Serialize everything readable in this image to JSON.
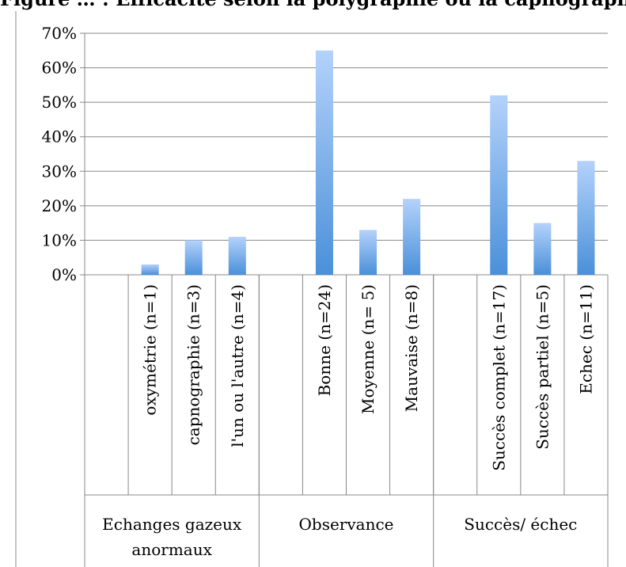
{
  "header": {
    "text": "Figure … : Efficacité selon la polygraphie ou la capnographie"
  },
  "chart_data": {
    "type": "bar",
    "ylim": [
      0,
      0.7
    ],
    "yticks": [
      "0%",
      "10%",
      "20%",
      "30%",
      "40%",
      "50%",
      "60%",
      "70%"
    ],
    "grid": true,
    "colors": {
      "bar_top": "#b4d2fb",
      "bar_bottom": "#4a90d9",
      "grid": "#888888",
      "axis": "#888888"
    },
    "groups": [
      {
        "label_lines": [
          "Echanges gazeux",
          "anormaux"
        ],
        "categories": [
          {
            "label": "",
            "value": null
          },
          {
            "label": "oxymétrie (n=1)",
            "value": 0.03
          },
          {
            "label": "capnographie (n=3)",
            "value": 0.1
          },
          {
            "label": "l'un ou l'autre  (n=4)",
            "value": 0.11
          }
        ]
      },
      {
        "label_lines": [
          "Observance"
        ],
        "categories": [
          {
            "label": "",
            "value": null
          },
          {
            "label": "Bonne (n=24)",
            "value": 0.65
          },
          {
            "label": "Moyenne (n= 5)",
            "value": 0.13
          },
          {
            "label": "Mauvaise (n=8)",
            "value": 0.22
          }
        ]
      },
      {
        "label_lines": [
          "Succès/ échec"
        ],
        "categories": [
          {
            "label": "",
            "value": null
          },
          {
            "label": "Succès complet (n=17)",
            "value": 0.52
          },
          {
            "label": "Succès partiel (n=5)",
            "value": 0.15
          },
          {
            "label": "Echec (n=11)",
            "value": 0.33
          }
        ]
      }
    ]
  }
}
